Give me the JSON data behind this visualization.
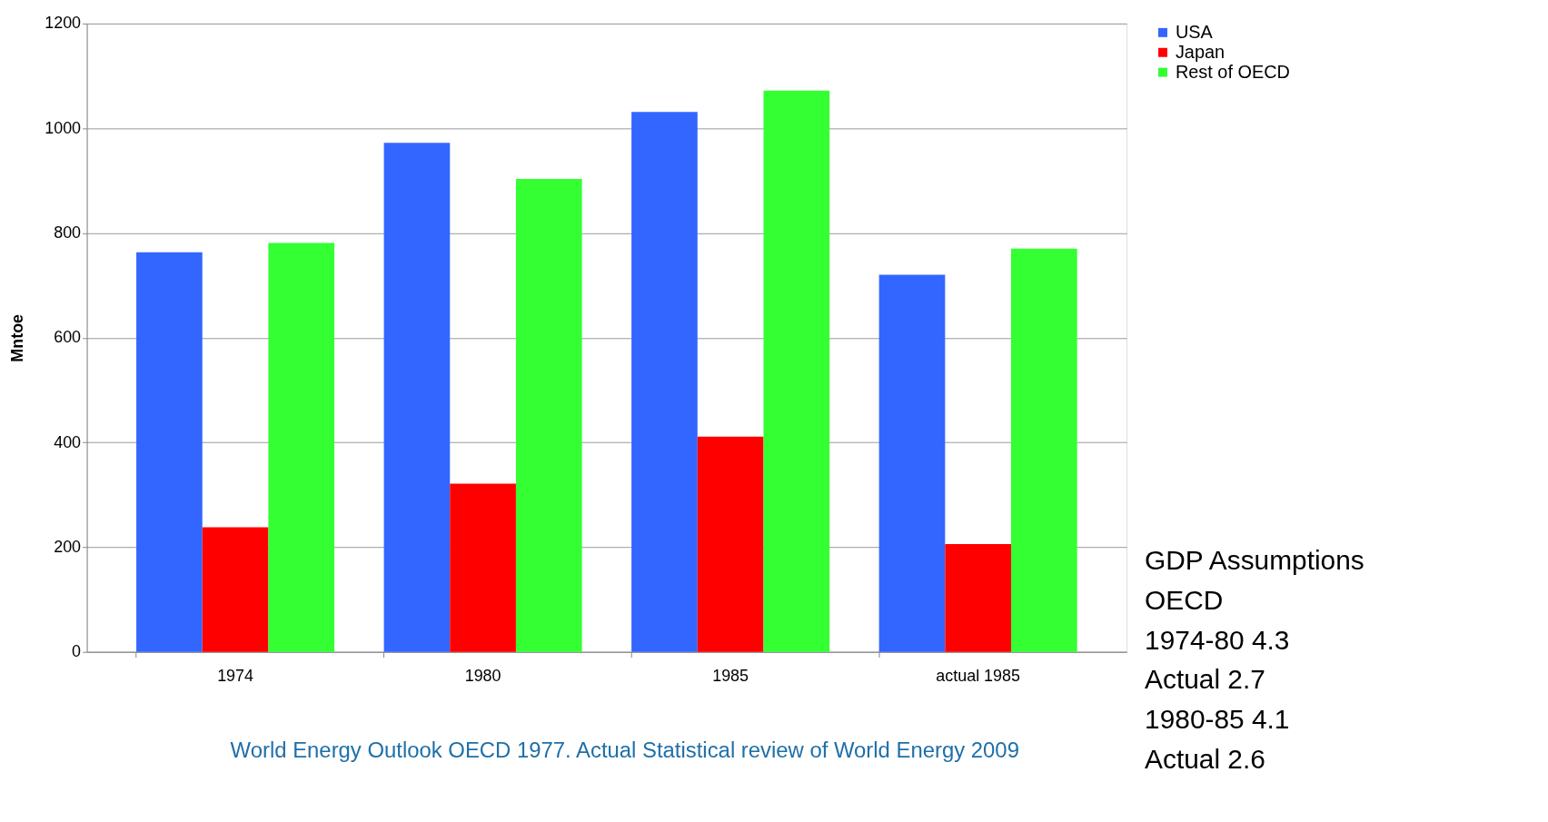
{
  "chart_data": {
    "type": "bar",
    "ylabel": "Mntoe",
    "categories": [
      "1974",
      "1980",
      "1985",
      "actual 1985"
    ],
    "series": [
      {
        "name": "USA",
        "color": "#3366ff",
        "values": [
          763,
          972,
          1031,
          720
        ]
      },
      {
        "name": "Japan",
        "color": "#ff0000",
        "values": [
          238,
          321,
          411,
          206
        ]
      },
      {
        "name": "Rest of OECD",
        "color": "#33ff33",
        "values": [
          781,
          903,
          1072,
          770
        ]
      }
    ],
    "ylim": [
      0,
      1200
    ],
    "yticks": [
      0,
      200,
      400,
      600,
      800,
      1000,
      1200
    ],
    "grid": "y",
    "legend": "right",
    "annotations": [
      "World Energy Outlook OECD 1977. Actual Statistical review of World Energy 2009",
      "GDP Assumptions",
      "OECD",
      "1974-80    4.3",
      "Actual        2.7",
      "1980-85    4.1",
      "Actual        2.6"
    ]
  }
}
